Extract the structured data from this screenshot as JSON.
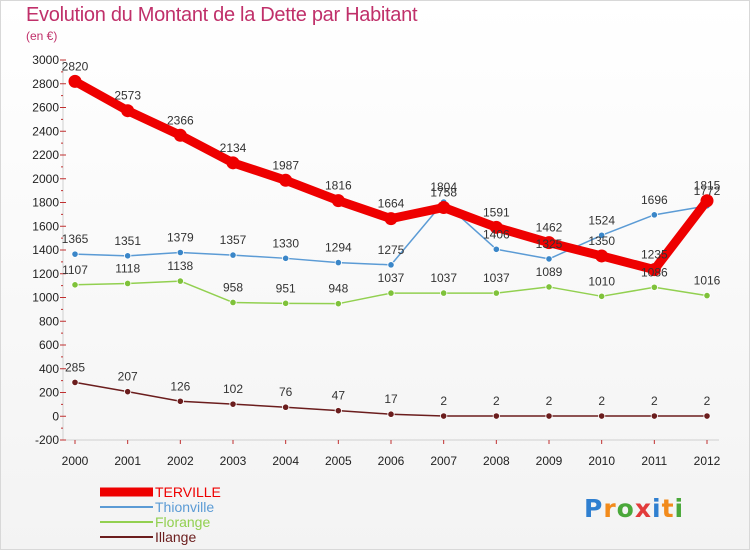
{
  "header": {
    "title": "Evolution du Montant de la Dette par Habitant",
    "subtitle": "(en €)"
  },
  "colors": {
    "title": "#c0306a",
    "TERVILLE": "#ee0000",
    "Thionville": "#5b9bd5",
    "Florange": "#92d050",
    "Illange": "#6b1d1d"
  },
  "chart_data": {
    "type": "line",
    "title": "Evolution du Montant de la Dette par Habitant",
    "subtitle": "(en €)",
    "x": [
      "2000",
      "2001",
      "2002",
      "2003",
      "2004",
      "2005",
      "2006",
      "2007",
      "2008",
      "2009",
      "2010",
      "2011",
      "2012"
    ],
    "ylim": [
      -200,
      3000
    ],
    "yticks": [
      -200,
      0,
      200,
      400,
      600,
      800,
      1000,
      1200,
      1400,
      1600,
      1800,
      2000,
      2200,
      2400,
      2600,
      2800,
      3000
    ],
    "grid": false,
    "legend_position": "bottom-left",
    "series": [
      {
        "name": "TERVILLE",
        "color": "#ee0000",
        "values": [
          2820,
          2573,
          2366,
          2134,
          1987,
          1816,
          1664,
          1758,
          1591,
          1462,
          1350,
          1235,
          1815
        ]
      },
      {
        "name": "Thionville",
        "color": "#5b9bd5",
        "values": [
          1365,
          1351,
          1379,
          1357,
          1330,
          1294,
          1275,
          1804,
          1406,
          1325,
          1524,
          1696,
          1772
        ]
      },
      {
        "name": "Florange",
        "color": "#92d050",
        "values": [
          1107,
          1118,
          1138,
          958,
          951,
          948,
          1037,
          1037,
          1037,
          1089,
          1010,
          1086,
          1016
        ]
      },
      {
        "name": "Illange",
        "color": "#6b1d1d",
        "values": [
          285,
          207,
          126,
          102,
          76,
          47,
          17,
          2,
          2,
          2,
          2,
          2,
          2
        ]
      }
    ]
  },
  "logo": {
    "text": "Proxiti"
  }
}
